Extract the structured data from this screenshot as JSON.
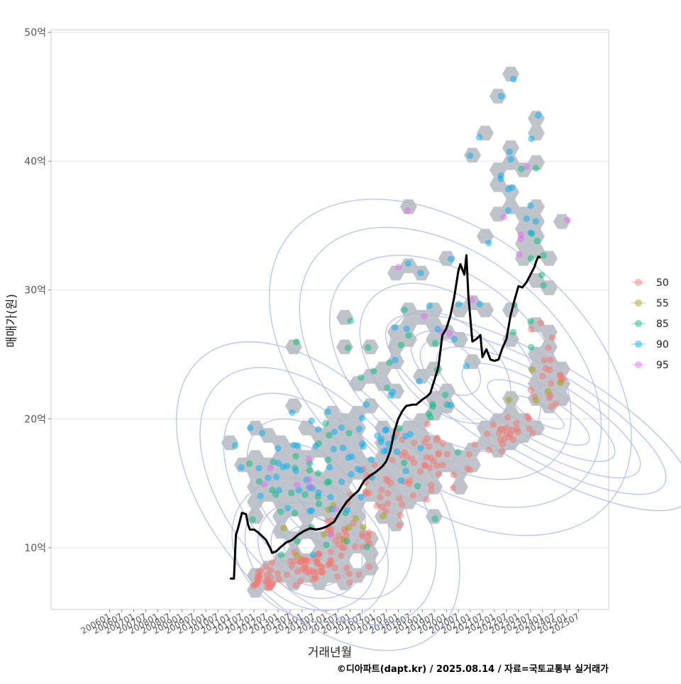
{
  "chart_data": {
    "type": "scatter",
    "xlabel": "거래년월",
    "ylabel": "매매가(원)",
    "caption": "©디아파트(dapt.kr) / 2025.08.14 / 자료=국토교통부 실거래가",
    "y_ticks": [
      {
        "value": 10,
        "label": "10억"
      },
      {
        "value": 20,
        "label": "20억"
      },
      {
        "value": 30,
        "label": "30억"
      },
      {
        "value": 40,
        "label": "40억"
      },
      {
        "value": 50,
        "label": "50억"
      }
    ],
    "ylim": [
      5.2,
      50.2
    ],
    "x_ticks": [
      "200601",
      "200607",
      "200701",
      "200707",
      "200801",
      "200807",
      "200901",
      "200907",
      "201001",
      "201007",
      "201101",
      "201107",
      "201201",
      "201207",
      "201301",
      "201307",
      "201401",
      "201407",
      "201501",
      "201507",
      "201601",
      "201607",
      "201701",
      "201707",
      "201801",
      "201807",
      "201901",
      "201907",
      "202001",
      "202007",
      "202101",
      "202107",
      "202201",
      "202207",
      "202301",
      "202307",
      "202401",
      "202407",
      "202501",
      "202507"
    ],
    "grid": "horizontal",
    "legend": {
      "position": "right",
      "entries": [
        {
          "label": "50",
          "color": "#F8766D"
        },
        {
          "label": "55",
          "color": "#A3A500"
        },
        {
          "label": "85",
          "color": "#00BF7D"
        },
        {
          "label": "90",
          "color": "#00B0F6"
        },
        {
          "label": "95",
          "color": "#E76BF3"
        }
      ]
    },
    "colors": {
      "hex_fill": "#b4bac2",
      "contour": "#aab8ee",
      "trend_line": "#000000",
      "grid": "#e3e3e3",
      "panel_border": "#cccccc"
    },
    "trend_series": [
      [
        "2011-01",
        7.6
      ],
      [
        "2011-03",
        7.6
      ],
      [
        "2011-04",
        11.0
      ],
      [
        "2011-05",
        11.5
      ],
      [
        "2011-07",
        12.7
      ],
      [
        "2011-09",
        12.6
      ],
      [
        "2011-10",
        11.8
      ],
      [
        "2011-11",
        11.4
      ],
      [
        "2012-01",
        11.4
      ],
      [
        "2012-03",
        11.2
      ],
      [
        "2012-05",
        10.9
      ],
      [
        "2012-07",
        10.6
      ],
      [
        "2012-09",
        10.0
      ],
      [
        "2012-10",
        9.6
      ],
      [
        "2012-12",
        9.7
      ],
      [
        "2013-02",
        10.0
      ],
      [
        "2013-05",
        10.4
      ],
      [
        "2013-08",
        10.6
      ],
      [
        "2013-11",
        11.0
      ],
      [
        "2014-02",
        11.3
      ],
      [
        "2014-05",
        11.5
      ],
      [
        "2014-08",
        11.4
      ],
      [
        "2014-11",
        11.5
      ],
      [
        "2015-02",
        11.7
      ],
      [
        "2015-05",
        12.0
      ],
      [
        "2015-08",
        12.8
      ],
      [
        "2015-11",
        13.5
      ],
      [
        "2016-02",
        14.0
      ],
      [
        "2016-05",
        14.4
      ],
      [
        "2016-08",
        15.2
      ],
      [
        "2016-11",
        15.6
      ],
      [
        "2017-02",
        15.9
      ],
      [
        "2017-05",
        16.3
      ],
      [
        "2017-07",
        16.7
      ],
      [
        "2017-09",
        17.5
      ],
      [
        "2017-11",
        19.0
      ],
      [
        "2018-01",
        20.0
      ],
      [
        "2018-03",
        20.6
      ],
      [
        "2018-05",
        21.0
      ],
      [
        "2018-08",
        21.1
      ],
      [
        "2018-10",
        21.1
      ],
      [
        "2019-01",
        21.5
      ],
      [
        "2019-03",
        21.7
      ],
      [
        "2019-05",
        22.0
      ],
      [
        "2019-07",
        23.0
      ],
      [
        "2019-09",
        24.0
      ],
      [
        "2019-11",
        26.5
      ],
      [
        "2020-01",
        27.0
      ],
      [
        "2020-03",
        28.0
      ],
      [
        "2020-05",
        29.5
      ],
      [
        "2020-07",
        31.5
      ],
      [
        "2020-08",
        32.0
      ],
      [
        "2020-10",
        31.2
      ],
      [
        "2020-11",
        32.7
      ],
      [
        "2020-12",
        29.5
      ],
      [
        "2021-02",
        26.0
      ],
      [
        "2021-04",
        26.2
      ],
      [
        "2021-06",
        26.5
      ],
      [
        "2021-07",
        24.8
      ],
      [
        "2021-09",
        25.4
      ],
      [
        "2021-11",
        24.6
      ],
      [
        "2022-01",
        24.5
      ],
      [
        "2022-03",
        24.6
      ],
      [
        "2022-05",
        25.5
      ],
      [
        "2022-07",
        26.2
      ],
      [
        "2022-09",
        28.0
      ],
      [
        "2022-11",
        29.2
      ],
      [
        "2023-01",
        30.3
      ],
      [
        "2023-03",
        30.2
      ],
      [
        "2023-05",
        30.6
      ],
      [
        "2023-07",
        31.2
      ],
      [
        "2023-09",
        31.8
      ],
      [
        "2023-10",
        32.3
      ],
      [
        "2023-11",
        32.6
      ],
      [
        "2023-12",
        32.5
      ]
    ]
  }
}
